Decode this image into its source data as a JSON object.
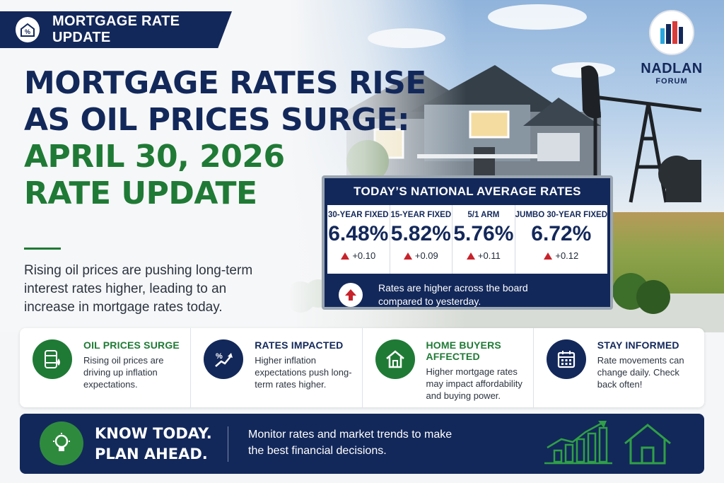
{
  "header_tag": {
    "label": "MORTGAGE RATE UPDATE",
    "icon": "house-percent-icon"
  },
  "title": {
    "line1": "MORTGAGE RATES RISE",
    "line2": "AS OIL PRICES SURGE:",
    "line3": "APRIL 30, 2026",
    "line4": "RATE UPDATE"
  },
  "intro": "Rising oil prices are pushing long-term interest rates higher, leading to an increase in mortgage rates today.",
  "logo": {
    "name": "NADLAN",
    "sub": "FORUM"
  },
  "rates_board": {
    "title": "TODAY’S NATIONAL AVERAGE RATES",
    "rates": [
      {
        "label": "30-YEAR FIXED",
        "value": "6.48%",
        "change": "+0.10"
      },
      {
        "label": "15-YEAR FIXED",
        "value": "5.82%",
        "change": "+0.09"
      },
      {
        "label": "5/1 ARM",
        "value": "5.76%",
        "change": "+0.11"
      },
      {
        "label": "JUMBO 30-YEAR FIXED",
        "value": "6.72%",
        "change": "+0.12"
      }
    ],
    "note": "Rates are higher across the board compared to yesterday."
  },
  "cards": [
    {
      "title": "OIL PRICES SURGE",
      "text": "Rising oil prices are driving up inflation expectations.",
      "icon": "oil-barrel-icon",
      "color": "#1f7a35"
    },
    {
      "title": "RATES IMPACTED",
      "text": "Higher inflation expectations push long-term rates higher.",
      "icon": "percent-trend-icon",
      "color": "#13285a"
    },
    {
      "title": "HOME BUYERS AFFECTED",
      "text": "Higher mortgage rates may impact affordability and buying power.",
      "icon": "house-icon",
      "color": "#1f7a35"
    },
    {
      "title": "STAY INFORMED",
      "text": "Rate movements can change daily. Check back often!",
      "icon": "calendar-icon",
      "color": "#13285a"
    }
  ],
  "banner": {
    "headline1": "KNOW TODAY.",
    "headline2": "PLAN AHEAD.",
    "text": "Monitor rates and market trends to make the best financial decisions.",
    "icons": [
      "lightbulb-icon",
      "growth-chart-icon",
      "house-outline-icon"
    ]
  },
  "colors": {
    "navy": "#13285a",
    "green": "#1f7a35",
    "red": "#c8222b"
  }
}
